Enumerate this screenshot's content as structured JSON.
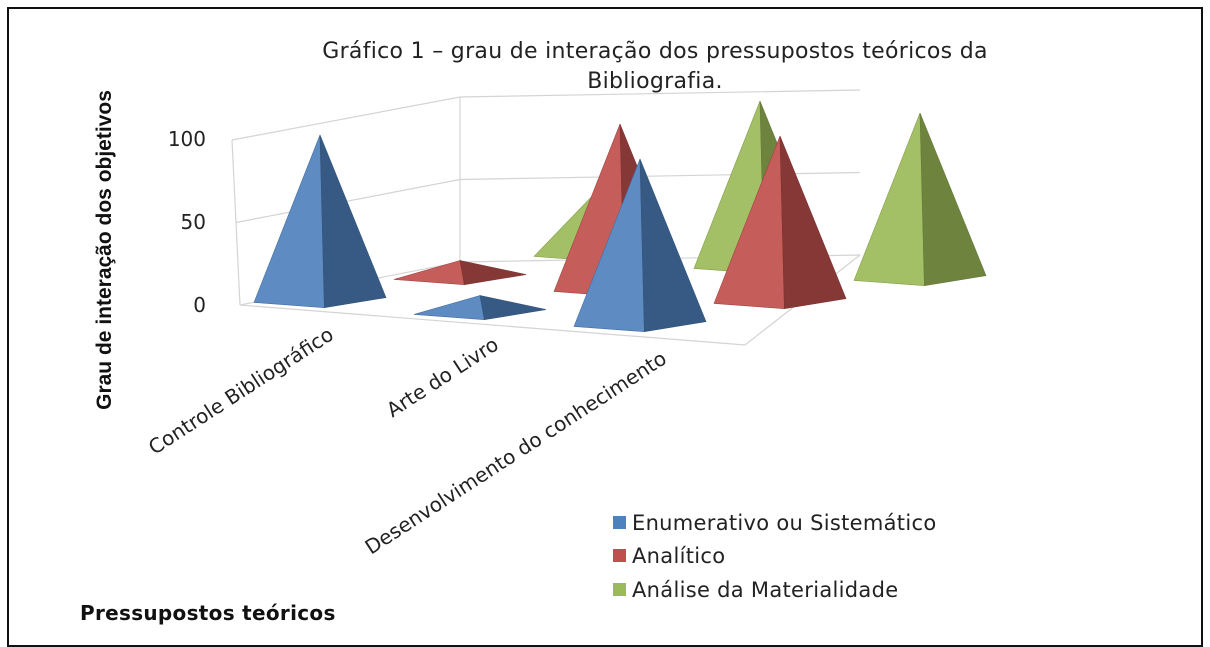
{
  "chart_data": {
    "type": "bar",
    "subtype": "3d-pyramid",
    "title_line1": "Gráfico 1 – grau de interação dos pressupostos teóricos da",
    "title_line2": "Bibliografia.",
    "xlabel": "Pressupostos teóricos",
    "ylabel": "Grau de interação dos objetivos",
    "ylim": [
      0,
      100
    ],
    "yticks": [
      "0",
      "50",
      "100"
    ],
    "categories": [
      "Controle Bibliográfico",
      "Arte do Livro",
      "Desenvolvimento do conhecimento"
    ],
    "series": [
      {
        "name": "Enumerativo ou Sistemático",
        "values": [
          100,
          10,
          100
        ],
        "color": "#4f81bd"
      },
      {
        "name": "Analítico",
        "values": [
          10,
          100,
          100
        ],
        "color": "#c0504d"
      },
      {
        "name": "Análise da Materialidade",
        "values": [
          40,
          100,
          100
        ],
        "color": "#9bbb59"
      }
    ],
    "legend": "bottom-right",
    "grid": true
  }
}
